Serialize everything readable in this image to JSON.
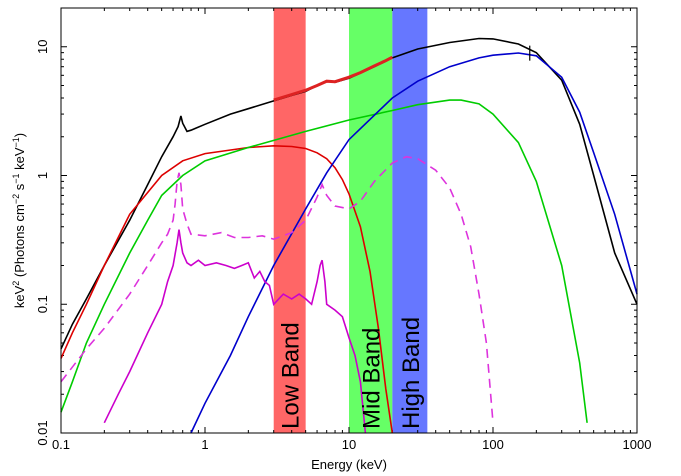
{
  "chart_data": {
    "type": "line",
    "xlabel": "Energy (keV)",
    "ylabel_main": "keV",
    "ylabel_sup": "2",
    "ylabel_rest": " (Photons cm",
    "ylabel_sup2": "−2",
    "ylabel_rest2": " s",
    "ylabel_sup3": "−1",
    "ylabel_rest3": " keV",
    "ylabel_sup4": "−1",
    "ylabel_end": ")",
    "xscale": "log",
    "yscale": "log",
    "xlim": [
      0.1,
      1000
    ],
    "ylim": [
      0.01,
      20
    ],
    "x_ticks": [
      {
        "value": 0.1,
        "label": "0.1"
      },
      {
        "value": 1,
        "label": "1"
      },
      {
        "value": 10,
        "label": "10"
      },
      {
        "value": 100,
        "label": "100"
      },
      {
        "value": 1000,
        "label": "1000"
      }
    ],
    "y_ticks": [
      {
        "value": 0.01,
        "label": "0.01"
      },
      {
        "value": 0.1,
        "label": "0.1"
      },
      {
        "value": 1,
        "label": "1"
      },
      {
        "value": 10,
        "label": "10"
      }
    ],
    "bands": [
      {
        "label": "Low Band",
        "x_range": [
          3,
          5
        ],
        "color": "#ff6666"
      },
      {
        "label": "Mid Band",
        "x_range": [
          10,
          20
        ],
        "color": "#66ff66"
      },
      {
        "label": "High Band",
        "x_range": [
          20,
          35
        ],
        "color": "#6677ff"
      }
    ],
    "series": [
      {
        "id": "total",
        "color": "#000000",
        "dash": false,
        "points": [
          [
            0.1,
            0.045
          ],
          [
            0.12,
            0.07
          ],
          [
            0.15,
            0.11
          ],
          [
            0.2,
            0.2
          ],
          [
            0.3,
            0.45
          ],
          [
            0.4,
            0.85
          ],
          [
            0.5,
            1.4
          ],
          [
            0.6,
            2.0
          ],
          [
            0.65,
            2.4
          ],
          [
            0.68,
            2.9
          ],
          [
            0.7,
            2.55
          ],
          [
            0.75,
            2.2
          ],
          [
            0.8,
            2.25
          ],
          [
            1.0,
            2.5
          ],
          [
            1.5,
            3.0
          ],
          [
            2,
            3.3
          ],
          [
            3,
            3.8
          ],
          [
            4,
            4.2
          ],
          [
            5,
            4.5
          ],
          [
            6,
            5.0
          ],
          [
            7,
            5.4
          ],
          [
            8,
            5.3
          ],
          [
            10,
            5.7
          ],
          [
            15,
            7.0
          ],
          [
            20,
            8.2
          ],
          [
            30,
            9.6
          ],
          [
            50,
            10.8
          ],
          [
            80,
            11.6
          ],
          [
            100,
            11.5
          ],
          [
            150,
            10.5
          ],
          [
            200,
            9.0
          ],
          [
            300,
            5.5
          ],
          [
            400,
            2.5
          ],
          [
            500,
            1.0
          ],
          [
            700,
            0.25
          ],
          [
            1000,
            0.1
          ]
        ]
      },
      {
        "id": "data-red",
        "color": "#dd2222",
        "dash": false,
        "points": [
          [
            3,
            3.85
          ],
          [
            4,
            4.25
          ],
          [
            5,
            4.6
          ],
          [
            6,
            5.0
          ],
          [
            7,
            5.4
          ],
          [
            8,
            5.35
          ],
          [
            10,
            5.8
          ],
          [
            12,
            6.3
          ],
          [
            15,
            7.1
          ],
          [
            18,
            7.8
          ],
          [
            20,
            8.3
          ]
        ]
      },
      {
        "id": "red",
        "color": "#dd0000",
        "dash": false,
        "points": [
          [
            0.1,
            0.038
          ],
          [
            0.12,
            0.06
          ],
          [
            0.15,
            0.1
          ],
          [
            0.2,
            0.2
          ],
          [
            0.3,
            0.5
          ],
          [
            0.5,
            1.0
          ],
          [
            0.7,
            1.3
          ],
          [
            1,
            1.48
          ],
          [
            2,
            1.65
          ],
          [
            3,
            1.7
          ],
          [
            4,
            1.68
          ],
          [
            5,
            1.62
          ],
          [
            6,
            1.5
          ],
          [
            7,
            1.35
          ],
          [
            8,
            1.15
          ],
          [
            9,
            0.93
          ],
          [
            10,
            0.72
          ],
          [
            12,
            0.4
          ],
          [
            14,
            0.18
          ],
          [
            16,
            0.065
          ],
          [
            18,
            0.022
          ],
          [
            20,
            0.01
          ]
        ]
      },
      {
        "id": "green",
        "color": "#00cc00",
        "dash": false,
        "points": [
          [
            0.1,
            0.0145
          ],
          [
            0.12,
            0.025
          ],
          [
            0.15,
            0.05
          ],
          [
            0.2,
            0.1
          ],
          [
            0.3,
            0.25
          ],
          [
            0.4,
            0.45
          ],
          [
            0.5,
            0.7
          ],
          [
            0.7,
            1.0
          ],
          [
            1,
            1.3
          ],
          [
            2,
            1.65
          ],
          [
            5,
            2.2
          ],
          [
            10,
            2.7
          ],
          [
            20,
            3.2
          ],
          [
            30,
            3.55
          ],
          [
            50,
            3.85
          ],
          [
            60,
            3.85
          ],
          [
            80,
            3.6
          ],
          [
            100,
            3.0
          ],
          [
            150,
            1.8
          ],
          [
            200,
            0.9
          ],
          [
            300,
            0.2
          ],
          [
            400,
            0.035
          ],
          [
            450,
            0.012
          ]
        ]
      },
      {
        "id": "blue",
        "color": "#0000cc",
        "dash": false,
        "points": [
          [
            0.8,
            0.01
          ],
          [
            1,
            0.017
          ],
          [
            1.5,
            0.04
          ],
          [
            2,
            0.08
          ],
          [
            3,
            0.2
          ],
          [
            5,
            0.55
          ],
          [
            7,
            1.05
          ],
          [
            10,
            1.9
          ],
          [
            20,
            4.0
          ],
          [
            30,
            5.4
          ],
          [
            50,
            7.0
          ],
          [
            80,
            8.2
          ],
          [
            100,
            8.6
          ],
          [
            150,
            8.95
          ],
          [
            200,
            8.5
          ],
          [
            300,
            5.8
          ],
          [
            400,
            3.1
          ],
          [
            500,
            1.5
          ],
          [
            700,
            0.5
          ],
          [
            1000,
            0.12
          ]
        ]
      },
      {
        "id": "magenta-dashed",
        "color": "#dd33dd",
        "dash": true,
        "points": [
          [
            0.1,
            0.025
          ],
          [
            0.15,
            0.045
          ],
          [
            0.2,
            0.065
          ],
          [
            0.3,
            0.12
          ],
          [
            0.4,
            0.2
          ],
          [
            0.5,
            0.3
          ],
          [
            0.55,
            0.35
          ],
          [
            0.6,
            0.45
          ],
          [
            0.62,
            0.6
          ],
          [
            0.64,
            0.9
          ],
          [
            0.66,
            1.05
          ],
          [
            0.68,
            0.85
          ],
          [
            0.7,
            0.55
          ],
          [
            0.75,
            0.42
          ],
          [
            0.8,
            0.35
          ],
          [
            1,
            0.34
          ],
          [
            1.3,
            0.36
          ],
          [
            1.6,
            0.33
          ],
          [
            2,
            0.33
          ],
          [
            2.5,
            0.34
          ],
          [
            3,
            0.32
          ],
          [
            4,
            0.36
          ],
          [
            5,
            0.45
          ],
          [
            6,
            0.68
          ],
          [
            6.5,
            0.85
          ],
          [
            7,
            0.7
          ],
          [
            8,
            0.58
          ],
          [
            10,
            0.55
          ],
          [
            12,
            0.63
          ],
          [
            15,
            0.9
          ],
          [
            20,
            1.25
          ],
          [
            25,
            1.4
          ],
          [
            30,
            1.35
          ],
          [
            40,
            1.1
          ],
          [
            50,
            0.8
          ],
          [
            60,
            0.5
          ],
          [
            70,
            0.28
          ],
          [
            80,
            0.12
          ],
          [
            90,
            0.05
          ],
          [
            100,
            0.012
          ]
        ]
      },
      {
        "id": "magenta-solid",
        "color": "#cc00cc",
        "dash": false,
        "points": [
          [
            0.2,
            0.012
          ],
          [
            0.25,
            0.02
          ],
          [
            0.3,
            0.03
          ],
          [
            0.4,
            0.06
          ],
          [
            0.5,
            0.1
          ],
          [
            0.55,
            0.15
          ],
          [
            0.6,
            0.2
          ],
          [
            0.64,
            0.3
          ],
          [
            0.66,
            0.38
          ],
          [
            0.68,
            0.3
          ],
          [
            0.7,
            0.25
          ],
          [
            0.75,
            0.21
          ],
          [
            0.8,
            0.2
          ],
          [
            0.9,
            0.22
          ],
          [
            1,
            0.2
          ],
          [
            1.2,
            0.21
          ],
          [
            1.4,
            0.2
          ],
          [
            1.6,
            0.19
          ],
          [
            1.8,
            0.2
          ],
          [
            2,
            0.21
          ],
          [
            2.2,
            0.16
          ],
          [
            2.4,
            0.18
          ],
          [
            2.6,
            0.15
          ],
          [
            2.8,
            0.14
          ],
          [
            3,
            0.1
          ],
          [
            3.5,
            0.12
          ],
          [
            4,
            0.11
          ],
          [
            4.5,
            0.12
          ],
          [
            5,
            0.11
          ],
          [
            5.5,
            0.1
          ],
          [
            6,
            0.15
          ],
          [
            6.3,
            0.2
          ],
          [
            6.5,
            0.22
          ],
          [
            6.8,
            0.15
          ],
          [
            7,
            0.1
          ],
          [
            8,
            0.09
          ],
          [
            9,
            0.08
          ],
          [
            10,
            0.055
          ],
          [
            11,
            0.04
          ],
          [
            12,
            0.025
          ],
          [
            13,
            0.01
          ]
        ]
      }
    ],
    "errorbars": [
      {
        "x": 180,
        "ylow": 7.8,
        "yhigh": 10.2
      }
    ]
  }
}
